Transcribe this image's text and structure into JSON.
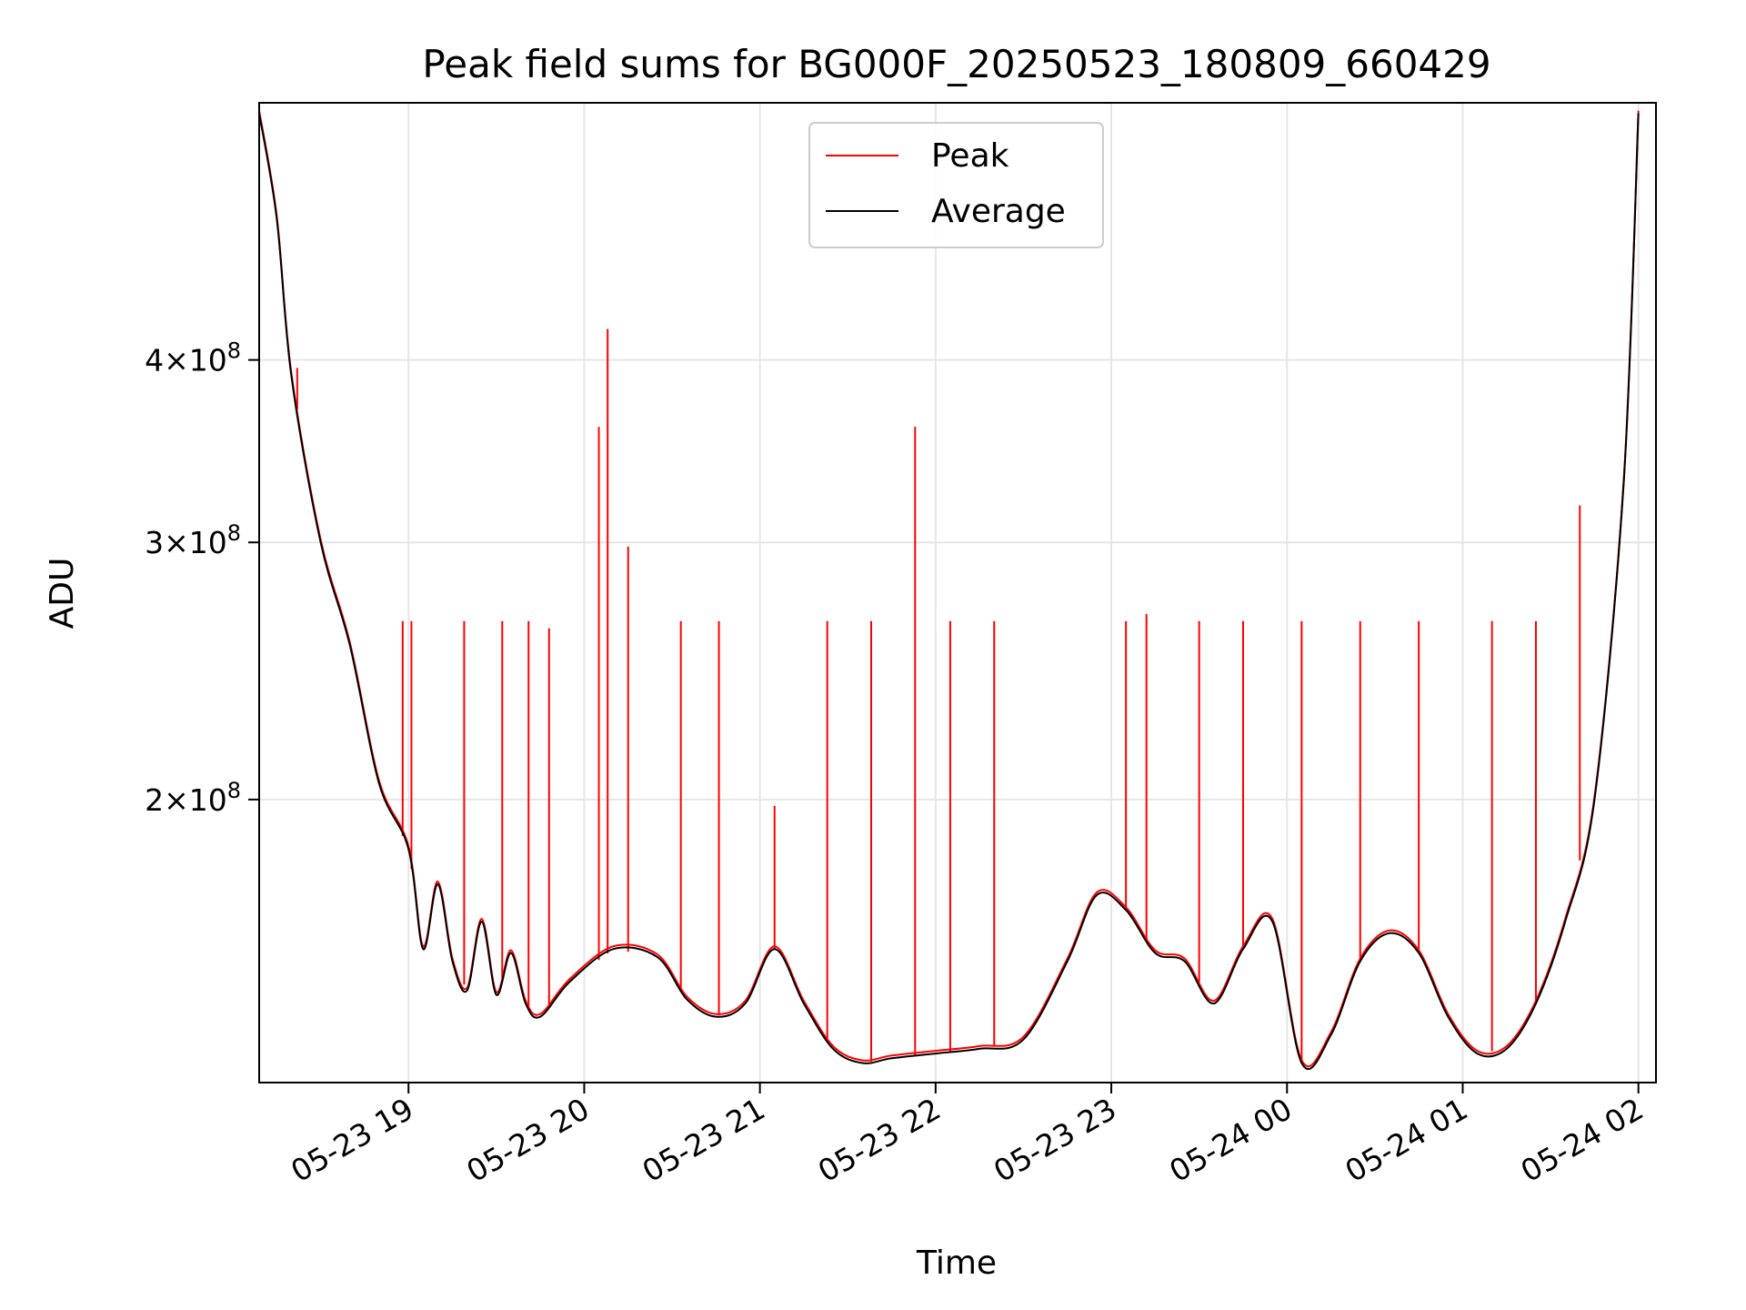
{
  "chart_data": {
    "type": "line",
    "title": "Peak field sums for BG000F_20250523_180809_660429",
    "xlabel": "Time",
    "ylabel": "ADU",
    "y_scale": "log",
    "grid": true,
    "legend_position": "top-center",
    "xlim": [
      "2025-05-23 18:09",
      "2025-05-24 02:06"
    ],
    "ylim": [
      128000000,
      600000000
    ],
    "x_ticks": [
      {
        "value": "2025-05-23 19:00",
        "label": "05-23 19"
      },
      {
        "value": "2025-05-23 20:00",
        "label": "05-23 20"
      },
      {
        "value": "2025-05-23 21:00",
        "label": "05-23 21"
      },
      {
        "value": "2025-05-23 22:00",
        "label": "05-23 22"
      },
      {
        "value": "2025-05-23 23:00",
        "label": "05-23 23"
      },
      {
        "value": "2025-05-24 00:00",
        "label": "05-24 00"
      },
      {
        "value": "2025-05-24 01:00",
        "label": "05-24 01"
      },
      {
        "value": "2025-05-24 02:00",
        "label": "05-24 02"
      }
    ],
    "y_ticks": [
      {
        "value": 200000000,
        "mantissa": "2",
        "exponent": "8"
      },
      {
        "value": 300000000,
        "mantissa": "3",
        "exponent": "8"
      },
      {
        "value": 400000000,
        "mantissa": "4",
        "exponent": "8"
      }
    ],
    "colors": {
      "peak": "#ff0000",
      "average": "#000000"
    },
    "series": [
      {
        "name": "Average",
        "x": [
          "2025-05-23 18:09",
          "2025-05-23 18:15",
          "2025-05-23 18:20",
          "2025-05-23 18:30",
          "2025-05-23 18:40",
          "2025-05-23 18:50",
          "2025-05-23 19:00",
          "2025-05-23 19:05",
          "2025-05-23 19:10",
          "2025-05-23 19:15",
          "2025-05-23 19:20",
          "2025-05-23 19:25",
          "2025-05-23 19:30",
          "2025-05-23 19:35",
          "2025-05-23 19:40",
          "2025-05-23 19:45",
          "2025-05-23 19:55",
          "2025-05-23 20:10",
          "2025-05-23 20:25",
          "2025-05-23 20:35",
          "2025-05-23 20:45",
          "2025-05-23 20:55",
          "2025-05-23 21:05",
          "2025-05-23 21:15",
          "2025-05-23 21:25",
          "2025-05-23 21:35",
          "2025-05-23 21:45",
          "2025-05-23 22:00",
          "2025-05-23 22:15",
          "2025-05-23 22:30",
          "2025-05-23 22:45",
          "2025-05-23 22:55",
          "2025-05-23 23:05",
          "2025-05-23 23:15",
          "2025-05-23 23:25",
          "2025-05-23 23:35",
          "2025-05-23 23:45",
          "2025-05-23 23:55",
          "2025-05-24 00:05",
          "2025-05-24 00:15",
          "2025-05-24 00:25",
          "2025-05-24 00:35",
          "2025-05-24 00:45",
          "2025-05-24 00:55",
          "2025-05-24 01:05",
          "2025-05-24 01:15",
          "2025-05-24 01:25",
          "2025-05-24 01:35",
          "2025-05-24 01:45",
          "2025-05-24 01:55",
          "2025-05-24 02:00"
        ],
        "y": [
          590000000,
          500000000,
          390000000,
          300000000,
          255000000,
          205000000,
          185000000,
          158000000,
          175000000,
          155000000,
          148000000,
          165000000,
          147000000,
          157000000,
          145000000,
          142000000,
          150000000,
          158000000,
          156000000,
          146000000,
          142000000,
          145000000,
          158000000,
          145000000,
          135000000,
          132000000,
          133000000,
          134000000,
          135000000,
          137000000,
          155000000,
          172000000,
          168000000,
          157000000,
          155000000,
          145000000,
          158000000,
          165000000,
          132000000,
          138000000,
          155000000,
          162000000,
          157000000,
          142000000,
          134000000,
          135000000,
          145000000,
          165000000,
          200000000,
          330000000,
          590000000
        ]
      },
      {
        "name": "Peak",
        "note_from_figure": "follows Average with frequent narrow spikes",
        "spikes": [
          {
            "x": "2025-05-23 18:22",
            "y": 395000000
          },
          {
            "x": "2025-05-23 18:58",
            "y": 265000000
          },
          {
            "x": "2025-05-23 19:01",
            "y": 265000000
          },
          {
            "x": "2025-05-23 19:19",
            "y": 265000000
          },
          {
            "x": "2025-05-23 19:32",
            "y": 265000000
          },
          {
            "x": "2025-05-23 19:41",
            "y": 265000000
          },
          {
            "x": "2025-05-23 19:48",
            "y": 262000000
          },
          {
            "x": "2025-05-23 20:05",
            "y": 360000000
          },
          {
            "x": "2025-05-23 20:08",
            "y": 420000000
          },
          {
            "x": "2025-05-23 20:15",
            "y": 298000000
          },
          {
            "x": "2025-05-23 20:33",
            "y": 265000000
          },
          {
            "x": "2025-05-23 20:46",
            "y": 265000000
          },
          {
            "x": "2025-05-23 21:05",
            "y": 198000000
          },
          {
            "x": "2025-05-23 21:23",
            "y": 265000000
          },
          {
            "x": "2025-05-23 21:38",
            "y": 265000000
          },
          {
            "x": "2025-05-23 21:53",
            "y": 360000000
          },
          {
            "x": "2025-05-23 22:05",
            "y": 265000000
          },
          {
            "x": "2025-05-23 22:20",
            "y": 265000000
          },
          {
            "x": "2025-05-23 23:05",
            "y": 265000000
          },
          {
            "x": "2025-05-23 23:12",
            "y": 268000000
          },
          {
            "x": "2025-05-23 23:30",
            "y": 265000000
          },
          {
            "x": "2025-05-23 23:45",
            "y": 265000000
          },
          {
            "x": "2025-05-24 00:05",
            "y": 265000000
          },
          {
            "x": "2025-05-24 00:25",
            "y": 265000000
          },
          {
            "x": "2025-05-24 00:45",
            "y": 265000000
          },
          {
            "x": "2025-05-24 01:10",
            "y": 265000000
          },
          {
            "x": "2025-05-24 01:25",
            "y": 265000000
          },
          {
            "x": "2025-05-24 01:40",
            "y": 318000000
          }
        ]
      }
    ]
  }
}
